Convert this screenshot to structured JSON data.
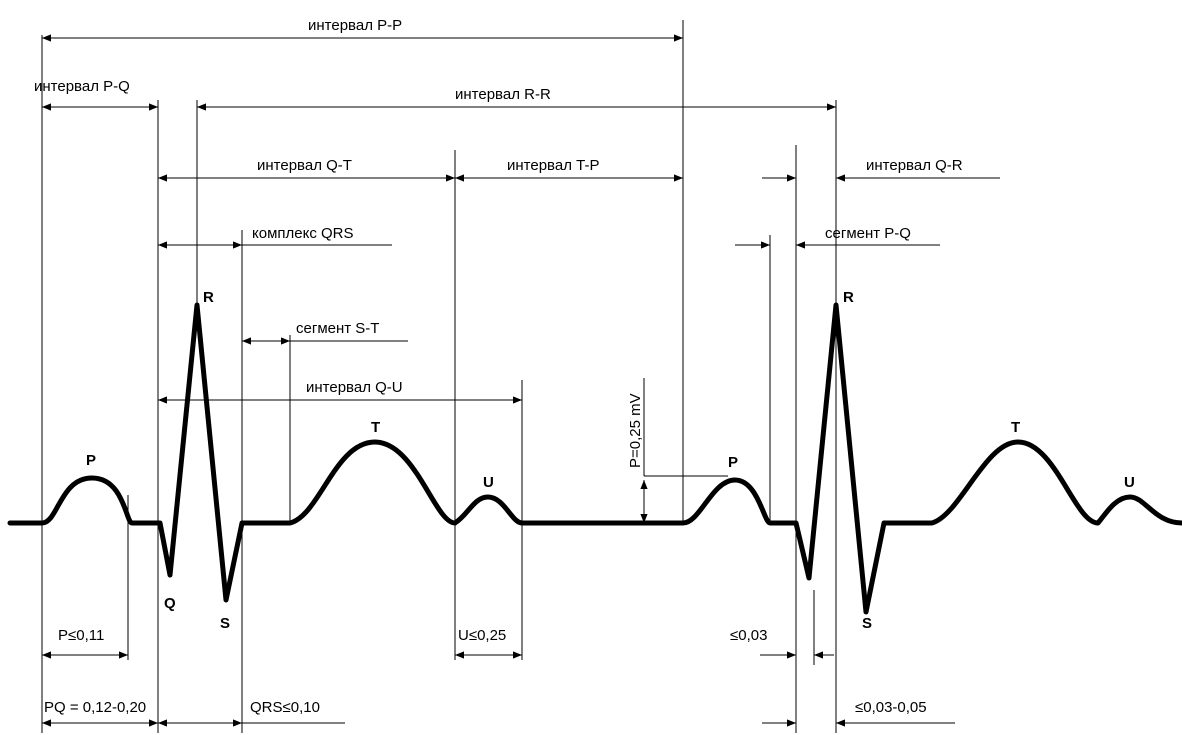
{
  "diagram": {
    "intervals": {
      "pp": "интервал  P-P",
      "pq": "интервал  P-Q",
      "rr": "интервал  R-R",
      "qt": "интервал  Q-T",
      "tp": "интервал  T-P",
      "qr": "интервал  Q-R",
      "qu": "интервал  Q-U"
    },
    "segments": {
      "qrs_complex": "комплекс  QRS",
      "st": "сегмент  S-T",
      "pq": "сегмент  P-Q"
    },
    "amplitude": "P=0,25 mV",
    "durations": {
      "p": "P≤0,11",
      "pq": "PQ = 0,12-0,20",
      "qrs": "QRS≤0,10",
      "u": "U≤0,25",
      "q": "≤0,03",
      "qr": "≤0,03-0,05"
    },
    "waves": {
      "p1": "P",
      "q1": "Q",
      "r1": "R",
      "s1": "S",
      "t1": "T",
      "u1": "U",
      "p2": "P",
      "r2": "R",
      "s2": "S",
      "t2": "T",
      "u2": "U"
    }
  }
}
